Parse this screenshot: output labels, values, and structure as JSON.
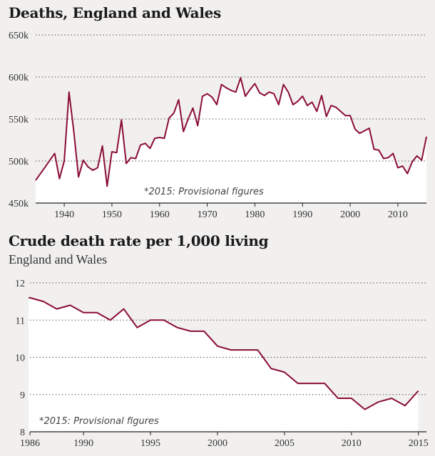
{
  "chart_data": [
    {
      "type": "area",
      "title": "Deaths, England and Wales",
      "note": "*2015: Provisional figures",
      "x_tick_labels": [
        "1940",
        "1950",
        "1960",
        "1970",
        "1980",
        "1990",
        "2000",
        "2010"
      ],
      "y_tick_labels": [
        "650k",
        "600k",
        "550k",
        "500k",
        "450k"
      ],
      "xlim": [
        1934,
        2016
      ],
      "ylim": [
        450000,
        650000
      ],
      "y_ticks": [
        650000,
        600000,
        550000,
        500000,
        450000
      ],
      "x_ticks": [
        1940,
        1950,
        1960,
        1970,
        1980,
        1990,
        2000,
        2010
      ],
      "grid": true,
      "series": [
        {
          "name": "Deaths",
          "color": "#8b0d35",
          "x": [
            1934,
            1935,
            1936,
            1937,
            1938,
            1939,
            1940,
            1941,
            1942,
            1943,
            1944,
            1945,
            1946,
            1947,
            1948,
            1949,
            1950,
            1951,
            1952,
            1953,
            1954,
            1955,
            1956,
            1957,
            1958,
            1959,
            1960,
            1961,
            1962,
            1963,
            1964,
            1965,
            1966,
            1967,
            1968,
            1969,
            1970,
            1971,
            1972,
            1973,
            1974,
            1975,
            1976,
            1977,
            1978,
            1979,
            1980,
            1981,
            1982,
            1983,
            1984,
            1985,
            1986,
            1987,
            1988,
            1989,
            1990,
            1991,
            1992,
            1993,
            1994,
            1995,
            1996,
            1997,
            1998,
            1999,
            2000,
            2001,
            2002,
            2003,
            2004,
            2005,
            2006,
            2007,
            2008,
            2009,
            2010,
            2011,
            2012,
            2013,
            2014,
            2015,
            2016
          ],
          "values": [
            477000,
            485000,
            493000,
            501000,
            509000,
            479000,
            500000,
            582000,
            535000,
            481000,
            501000,
            493000,
            489000,
            492000,
            518000,
            470000,
            511000,
            510000,
            549000,
            497000,
            504000,
            503000,
            519000,
            521000,
            515000,
            527000,
            528000,
            527000,
            551000,
            557000,
            573000,
            535000,
            550000,
            563000,
            542000,
            577000,
            580000,
            576000,
            567000,
            591000,
            587000,
            584000,
            582000,
            599000,
            577000,
            585000,
            592000,
            581000,
            578000,
            582000,
            580000,
            567000,
            591000,
            582000,
            567000,
            571000,
            577000,
            566000,
            570000,
            559000,
            578000,
            553000,
            566000,
            564000,
            559000,
            554000,
            554000,
            538000,
            533000,
            536000,
            539000,
            514000,
            513000,
            503000,
            504000,
            509000,
            492000,
            494000,
            485000,
            499000,
            506000,
            501000,
            529000
          ]
        }
      ]
    },
    {
      "type": "area",
      "title": "Crude death rate per 1,000 living",
      "subtitle": "England and Wales",
      "note": "*2015: Provisional figures",
      "x_tick_labels": [
        "1986",
        "1990",
        "1995",
        "2000",
        "2005",
        "2010",
        "2015"
      ],
      "y_tick_labels": [
        "12",
        "11",
        "10",
        "9",
        "8"
      ],
      "xlim": [
        1986,
        2015.6
      ],
      "ylim": [
        8,
        12
      ],
      "y_ticks": [
        12,
        11,
        10,
        9,
        8
      ],
      "x_ticks": [
        1986,
        1990,
        1995,
        2000,
        2005,
        2010,
        2015
      ],
      "grid": true,
      "series": [
        {
          "name": "Crude death rate",
          "color": "#8b0d35",
          "x": [
            1985.9,
            1986,
            1987,
            1988,
            1989,
            1990,
            1991,
            1992,
            1993,
            1994,
            1995,
            1996,
            1997,
            1998,
            1999,
            2000,
            2001,
            2002,
            2003,
            2004,
            2005,
            2006,
            2007,
            2008,
            2009,
            2010,
            2011,
            2012,
            2013,
            2014,
            2015
          ],
          "values": [
            11.6,
            11.6,
            11.5,
            11.3,
            11.4,
            11.2,
            11.2,
            11.0,
            11.3,
            10.8,
            11.0,
            11.0,
            10.8,
            10.7,
            10.7,
            10.3,
            10.2,
            10.2,
            10.2,
            9.7,
            9.6,
            9.3,
            9.3,
            9.3,
            8.9,
            8.9,
            8.6,
            8.8,
            8.9,
            8.7,
            9.1
          ]
        }
      ]
    }
  ]
}
